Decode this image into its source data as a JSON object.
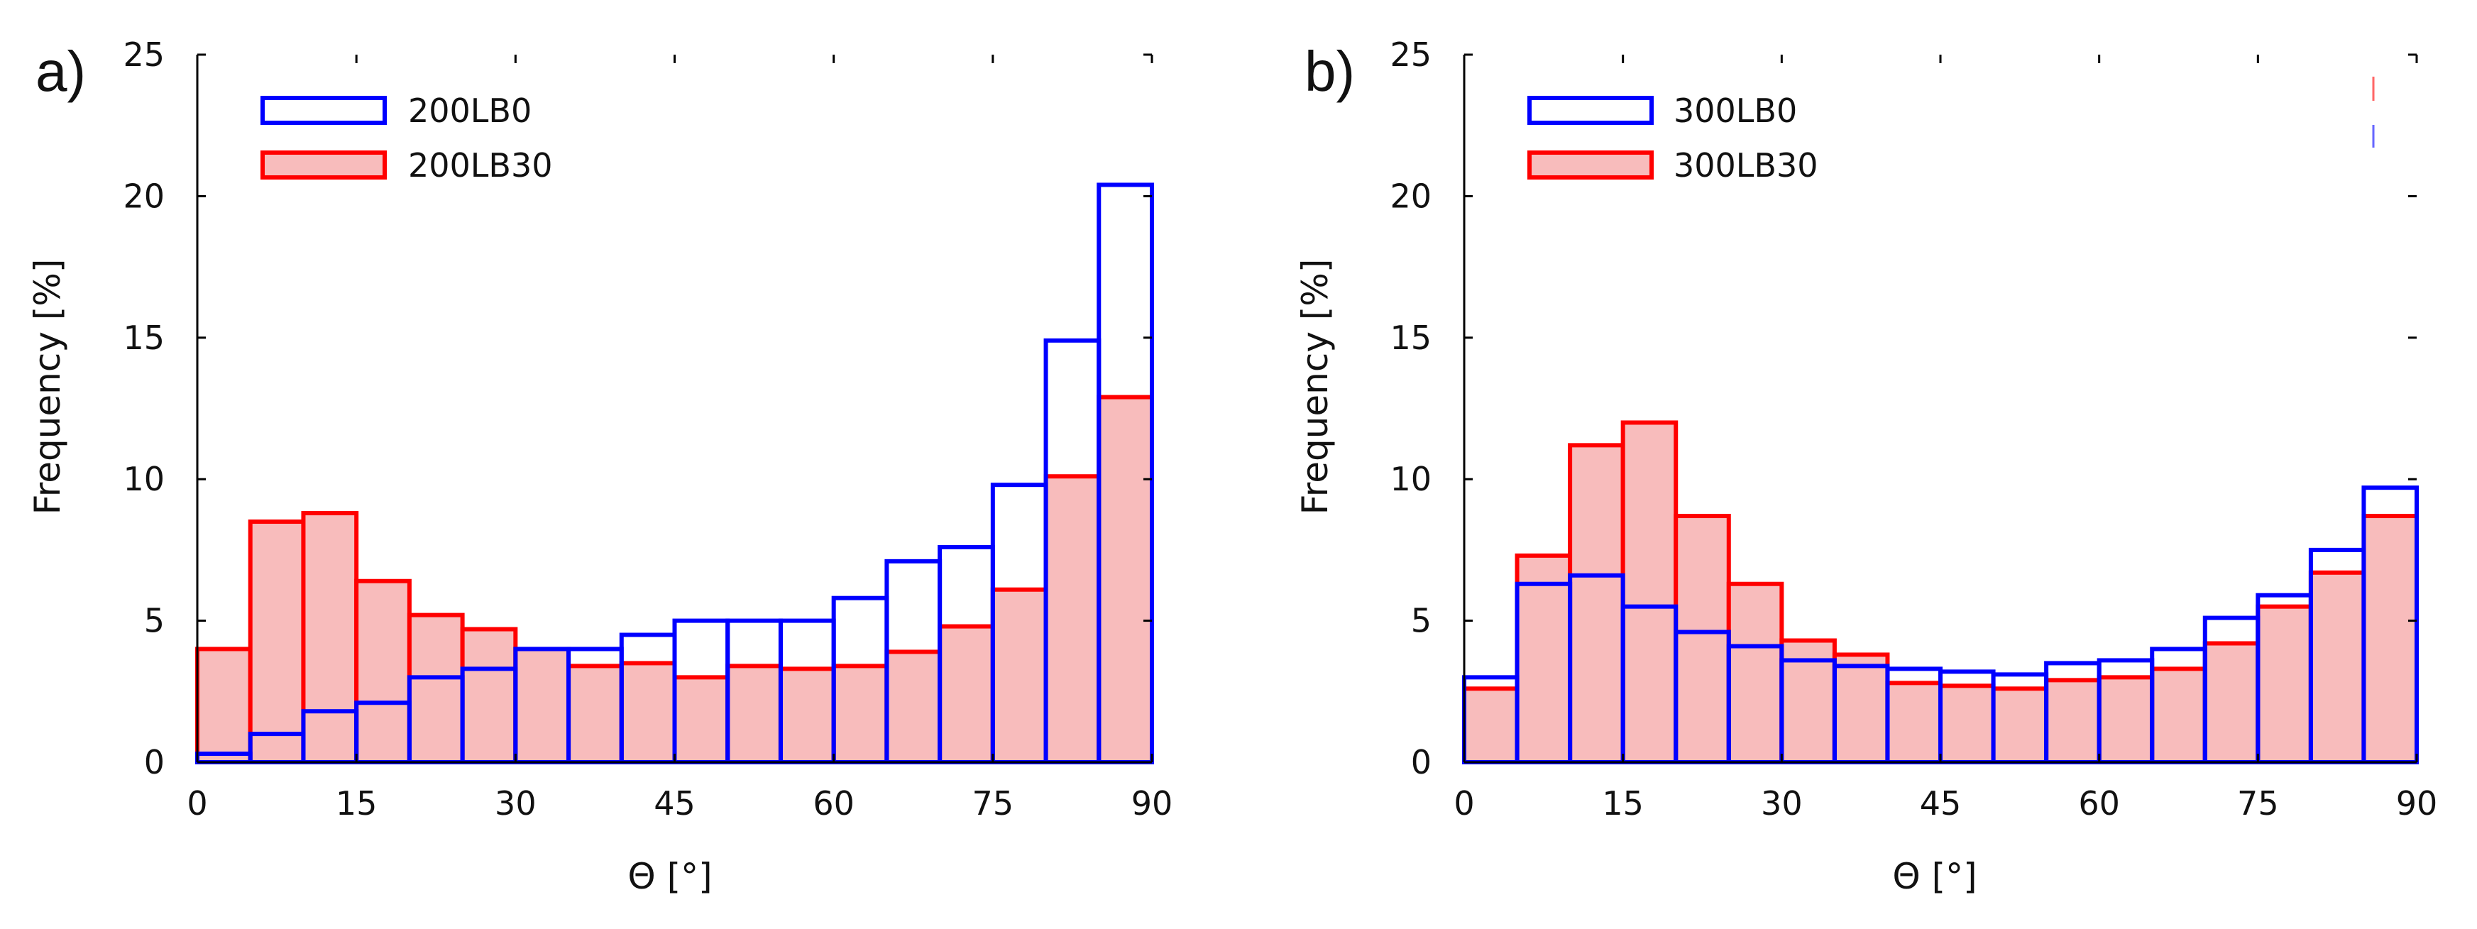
{
  "chart_data": [
    {
      "type": "bar",
      "panel_label": "a)",
      "xlabel": "Θ [°]",
      "ylabel": "Frequency [%]",
      "xlim": [
        0,
        90
      ],
      "ylim": [
        0,
        25
      ],
      "xticks": [
        0,
        15,
        30,
        45,
        60,
        75,
        90
      ],
      "yticks": [
        0,
        5,
        10,
        15,
        20,
        25
      ],
      "bin_edges": [
        0,
        5,
        10,
        15,
        20,
        25,
        30,
        35,
        40,
        45,
        50,
        55,
        60,
        65,
        70,
        75,
        80,
        85,
        90
      ],
      "legend_position": "top-left",
      "series": [
        {
          "name": "200LB30",
          "edge_color": "#ff0000",
          "fill_color": "#f8bcbc",
          "values": [
            4.0,
            8.5,
            8.8,
            6.4,
            5.2,
            4.7,
            4.0,
            3.4,
            3.5,
            3.0,
            3.4,
            3.3,
            3.4,
            3.9,
            4.8,
            6.1,
            10.1,
            12.9
          ]
        },
        {
          "name": "200LB0",
          "edge_color": "#0000ff",
          "fill_color": "none",
          "values": [
            0.3,
            1.0,
            1.8,
            2.1,
            3.0,
            3.3,
            4.0,
            4.0,
            4.5,
            5.0,
            5.0,
            5.0,
            5.8,
            7.1,
            7.6,
            9.8,
            14.9,
            20.4
          ]
        }
      ]
    },
    {
      "type": "bar",
      "panel_label": "b)",
      "xlabel": "Θ [°]",
      "ylabel": "Frequency [%]",
      "xlim": [
        0,
        90
      ],
      "ylim": [
        0,
        25
      ],
      "xticks": [
        0,
        15,
        30,
        45,
        60,
        75,
        90
      ],
      "yticks": [
        0,
        5,
        10,
        15,
        20,
        25
      ],
      "bin_edges": [
        0,
        5,
        10,
        15,
        20,
        25,
        30,
        35,
        40,
        45,
        50,
        55,
        60,
        65,
        70,
        75,
        80,
        85,
        90
      ],
      "legend_position": "top-left",
      "series": [
        {
          "name": "300LB30",
          "edge_color": "#ff0000",
          "fill_color": "#f8bcbc",
          "values": [
            2.6,
            7.3,
            11.2,
            12.0,
            8.7,
            6.3,
            4.3,
            3.8,
            2.8,
            2.7,
            2.6,
            2.9,
            3.0,
            3.3,
            4.2,
            5.5,
            6.7,
            8.7
          ]
        },
        {
          "name": "300LB0",
          "edge_color": "#0000ff",
          "fill_color": "none",
          "values": [
            3.0,
            6.3,
            6.6,
            5.5,
            4.6,
            4.1,
            3.6,
            3.4,
            3.3,
            3.2,
            3.1,
            3.5,
            3.6,
            4.0,
            5.1,
            5.9,
            7.5,
            9.7
          ]
        }
      ]
    }
  ],
  "colors": {
    "red": "#ff0000",
    "blue": "#0000ff",
    "pink_fill": "#f8bcbc"
  }
}
